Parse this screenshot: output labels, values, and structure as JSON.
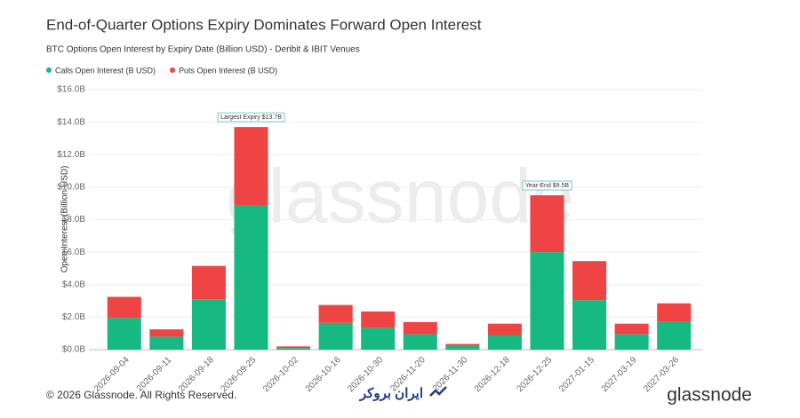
{
  "chart_data": {
    "type": "stacked_bar",
    "title": "End-of-Quarter Options Expiry Dominates Forward Open Interest",
    "subtitle": "BTC Options Open Interest by Expiry Date (Billion USD) - Deribit & IBIT Venues",
    "y_label": "Open Interest (Billion USD)",
    "watermark": "glassnode",
    "categories": [
      "2026-09-04",
      "2026-09-11",
      "2026-09-18",
      "2026-09-25",
      "2026-10-02",
      "2026-10-16",
      "2026-10-30",
      "2026-11-20",
      "2026-11-30",
      "2026-12-18",
      "2026-12-25",
      "2027-01-15",
      "2027-03-19",
      "2027-03-26"
    ],
    "series": [
      {
        "name": "Calls Open Interest (B USD)",
        "color": "#16b981",
        "values": [
          1.95,
          0.8,
          3.1,
          8.9,
          0.1,
          1.65,
          1.35,
          0.95,
          0.25,
          0.9,
          6.0,
          3.05,
          0.95,
          1.7
        ]
      },
      {
        "name": "Puts Open Interest (B USD)",
        "color": "#ef4444",
        "values": [
          1.3,
          0.45,
          2.05,
          4.8,
          0.1,
          1.1,
          1.0,
          0.75,
          0.1,
          0.7,
          3.5,
          2.4,
          0.65,
          1.15
        ]
      }
    ],
    "ylim": [
      0,
      16
    ],
    "yticks": [
      {
        "value": 0,
        "label": "$0.0B"
      },
      {
        "value": 2,
        "label": "$2.0B"
      },
      {
        "value": 4,
        "label": "$4.0B"
      },
      {
        "value": 6,
        "label": "$6.0B"
      },
      {
        "value": 8,
        "label": "$8.0B"
      },
      {
        "value": 10,
        "label": "$10.0B"
      },
      {
        "value": 12,
        "label": "$12.0B"
      },
      {
        "value": 14,
        "label": "$14.0B"
      },
      {
        "value": 16,
        "label": "$16.0B"
      }
    ],
    "grid": true,
    "annotations": [
      {
        "text": "Largest Expiry $13.7B",
        "x": "2026-09-25"
      },
      {
        "text": "Year-End $9.5B",
        "x": "2026-12-25"
      }
    ]
  },
  "footer": {
    "copyright": "© 2026 Glassnode. All Rights Reserved.",
    "partner": "ایران بروکر",
    "brand": "glassnode"
  }
}
